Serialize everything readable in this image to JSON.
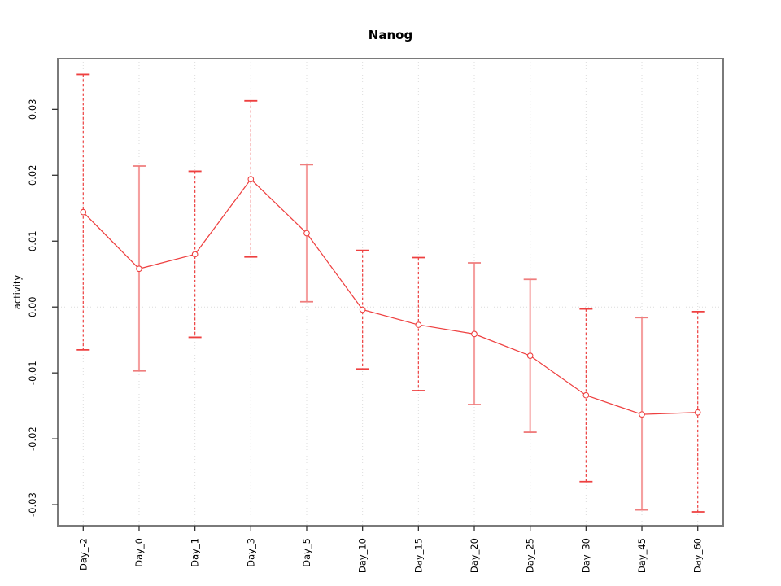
{
  "title": "Nanog",
  "chart_data": {
    "type": "line",
    "title": "Nanog",
    "xlabel": "",
    "ylabel": "activity",
    "categories": [
      "Day_-2",
      "Day_0",
      "Day_1",
      "Day_3",
      "Day_5",
      "Day_10",
      "Day_15",
      "Day_20",
      "Day_25",
      "Day_30",
      "Day_45",
      "Day_60"
    ],
    "series": [
      {
        "name": "Nanog activity",
        "values": [
          0.0144,
          0.0058,
          0.008,
          0.0194,
          0.0112,
          -0.0004,
          -0.0027,
          -0.0041,
          -0.0074,
          -0.0134,
          -0.0163,
          -0.016
        ],
        "error_upper": [
          0.0353,
          0.0214,
          0.0206,
          0.0313,
          0.0216,
          0.0086,
          0.0075,
          0.0067,
          0.0042,
          -0.0003,
          -0.0016,
          -0.0007
        ],
        "error_lower": [
          -0.0065,
          -0.0097,
          -0.0046,
          0.0076,
          0.0008,
          -0.0094,
          -0.0127,
          -0.0148,
          -0.019,
          -0.0265,
          -0.0308,
          -0.0311
        ]
      }
    ],
    "error_bar_styles": [
      "dashed",
      "solid",
      "dashed",
      "dashed",
      "solid",
      "dashed",
      "dashed",
      "solid",
      "solid",
      "dashed",
      "solid",
      "dashed"
    ],
    "yticks": [
      {
        "value": 0.03,
        "label": "0.03"
      },
      {
        "value": 0.02,
        "label": "0.02"
      },
      {
        "value": 0.01,
        "label": "0.01"
      },
      {
        "value": 0.0,
        "label": "0.00"
      },
      {
        "value": -0.01,
        "label": "-0.01"
      },
      {
        "value": -0.02,
        "label": "-0.02"
      },
      {
        "value": -0.03,
        "label": "-0.03"
      }
    ],
    "ylim": [
      -0.0332,
      0.0377
    ],
    "zero_reference_line": true,
    "grid": "vertical dotted line at each category; horizontal dotted line at y=0",
    "legend": "none",
    "marker": "open-circle",
    "colors": {
      "line": "#ee4040",
      "marker_fill": "#ffffff",
      "error_dashed": "#ee4040",
      "error_solid": "#f5a0a0",
      "error_solid_cap": "#ef7d7d",
      "grid": "#dcdcdc",
      "box": "#7a7a7a",
      "tick": "#333333",
      "text": "#000000",
      "background": "#ffffff"
    }
  }
}
